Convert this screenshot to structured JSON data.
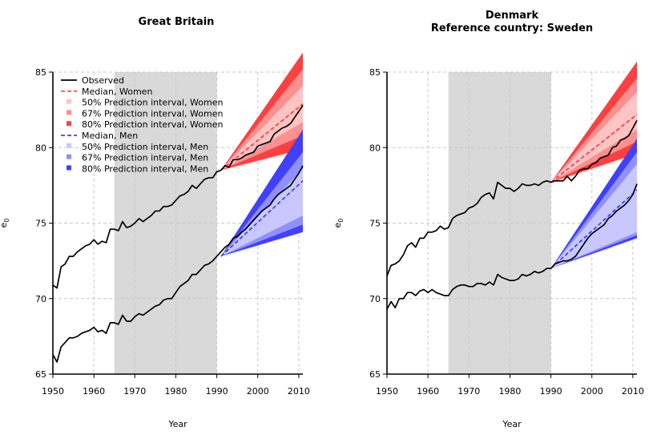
{
  "chart_data": [
    {
      "type": "line",
      "title": "Great Britain",
      "subtitle": "",
      "xlabel": "Year",
      "ylabel": "e0",
      "xlim": [
        1950,
        2011
      ],
      "ylim": [
        65,
        85
      ],
      "x_ticks": [
        1950,
        1960,
        1970,
        1980,
        1990,
        2000,
        2010
      ],
      "y_ticks": [
        65,
        70,
        75,
        80,
        85
      ],
      "shaded_period": [
        1965,
        1990
      ],
      "grid": true,
      "legend": {
        "placement": "top-left",
        "entries": [
          {
            "label": "Observed",
            "style": "line",
            "color": "#000000"
          },
          {
            "label": "Median, Women",
            "style": "dash",
            "color": "#ff2020"
          },
          {
            "label": "50% Prediction interval, Women",
            "style": "box",
            "color": "#ffc4c4"
          },
          {
            "label": "67% Prediction interval, Women",
            "style": "box",
            "color": "#ff9090"
          },
          {
            "label": "80% Prediction interval, Women",
            "style": "box",
            "color": "#ff4040"
          },
          {
            "label": "Median, Men",
            "style": "dash",
            "color": "#2020ff"
          },
          {
            "label": "50% Prediction interval, Men",
            "style": "box",
            "color": "#c8c8ff"
          },
          {
            "label": "67% Prediction interval, Men",
            "style": "box",
            "color": "#9090ff"
          },
          {
            "label": "80% Prediction interval, Men",
            "style": "box",
            "color": "#4040ff"
          }
        ]
      },
      "series": [
        {
          "name": "Observed, Women",
          "color": "#000000",
          "x": [
            1950,
            1951,
            1952,
            1953,
            1954,
            1955,
            1956,
            1957,
            1958,
            1959,
            1960,
            1961,
            1962,
            1963,
            1964,
            1965,
            1966,
            1967,
            1968,
            1969,
            1970,
            1971,
            1972,
            1973,
            1974,
            1975,
            1976,
            1977,
            1978,
            1979,
            1980,
            1981,
            1982,
            1983,
            1984,
            1985,
            1986,
            1987,
            1988,
            1989,
            1990,
            1991,
            1992,
            1993,
            1994,
            1995,
            1996,
            1997,
            1998,
            1999,
            2000,
            2001,
            2002,
            2003,
            2004,
            2005,
            2006,
            2007,
            2008,
            2009,
            2010,
            2011
          ],
          "values": [
            70.9,
            70.7,
            72.1,
            72.3,
            72.8,
            72.8,
            73.1,
            73.3,
            73.5,
            73.6,
            73.9,
            73.6,
            73.8,
            73.7,
            74.6,
            74.6,
            74.5,
            75.1,
            74.7,
            74.8,
            75.0,
            75.3,
            75.1,
            75.3,
            75.5,
            75.8,
            75.8,
            76.1,
            76.1,
            76.2,
            76.5,
            76.8,
            76.9,
            77.1,
            77.5,
            77.3,
            77.6,
            77.9,
            78.0,
            78.0,
            78.4,
            78.5,
            78.8,
            78.7,
            79.2,
            79.2,
            79.3,
            79.5,
            79.6,
            79.7,
            80.1,
            80.2,
            80.3,
            80.4,
            80.9,
            81.1,
            81.3,
            81.4,
            81.6,
            82.0,
            82.4,
            82.8
          ]
        },
        {
          "name": "Observed, Men",
          "color": "#000000",
          "x": [
            1950,
            1951,
            1952,
            1953,
            1954,
            1955,
            1956,
            1957,
            1958,
            1959,
            1960,
            1961,
            1962,
            1963,
            1964,
            1965,
            1966,
            1967,
            1968,
            1969,
            1970,
            1971,
            1972,
            1973,
            1974,
            1975,
            1976,
            1977,
            1978,
            1979,
            1980,
            1981,
            1982,
            1983,
            1984,
            1985,
            1986,
            1987,
            1988,
            1989,
            1990,
            1991,
            1992,
            1993,
            1994,
            1995,
            1996,
            1997,
            1998,
            1999,
            2000,
            2001,
            2002,
            2003,
            2004,
            2005,
            2006,
            2007,
            2008,
            2009,
            2010,
            2011
          ],
          "values": [
            66.3,
            65.8,
            66.8,
            67.1,
            67.4,
            67.4,
            67.5,
            67.7,
            67.8,
            67.9,
            68.1,
            67.8,
            67.9,
            67.7,
            68.4,
            68.4,
            68.3,
            68.9,
            68.5,
            68.5,
            68.8,
            69.0,
            68.9,
            69.1,
            69.3,
            69.5,
            69.6,
            69.9,
            70.0,
            70.0,
            70.4,
            70.8,
            71.0,
            71.2,
            71.6,
            71.6,
            71.9,
            72.2,
            72.3,
            72.5,
            72.8,
            73.1,
            73.4,
            73.6,
            74.0,
            74.1,
            74.4,
            74.6,
            74.9,
            75.2,
            75.5,
            75.8,
            76.0,
            76.2,
            76.6,
            76.9,
            77.1,
            77.3,
            77.5,
            77.9,
            78.3,
            78.8
          ]
        }
      ],
      "projections": [
        {
          "name": "Women",
          "start": [
            1991,
            78.5
          ],
          "end_year": 2011,
          "median_end": 82.9,
          "pi50_end": [
            81.7,
            84.1
          ],
          "pi67_end": [
            80.8,
            85.2
          ],
          "pi80_end": [
            79.9,
            86.3
          ],
          "colors": {
            "median": "#ff2020",
            "pi50": "#ffc4c4",
            "pi67": "#ff9090",
            "pi80": "#ff4040"
          }
        },
        {
          "name": "Men",
          "start": [
            1991,
            72.8
          ],
          "end_year": 2011,
          "median_end": 77.8,
          "pi50_end": [
            75.5,
            78.6
          ],
          "pi67_end": [
            74.9,
            79.7
          ],
          "pi80_end": [
            74.4,
            81.2
          ],
          "colors": {
            "median": "#2020ff",
            "pi50": "#c8c8ff",
            "pi67": "#9090ff",
            "pi80": "#4040ff"
          }
        }
      ]
    },
    {
      "type": "line",
      "title": "Denmark",
      "subtitle": "Reference country: Sweden",
      "xlabel": "Year",
      "ylabel": "e0",
      "xlim": [
        1950,
        2011
      ],
      "ylim": [
        65,
        85
      ],
      "x_ticks": [
        1950,
        1960,
        1970,
        1980,
        1990,
        2000,
        2010
      ],
      "y_ticks": [
        65,
        70,
        75,
        80,
        85
      ],
      "shaded_period": [
        1965,
        1990
      ],
      "grid": true,
      "series": [
        {
          "name": "Observed, Women",
          "color": "#000000",
          "x": [
            1950,
            1951,
            1952,
            1953,
            1954,
            1955,
            1956,
            1957,
            1958,
            1959,
            1960,
            1961,
            1962,
            1963,
            1964,
            1965,
            1966,
            1967,
            1968,
            1969,
            1970,
            1971,
            1972,
            1973,
            1974,
            1975,
            1976,
            1977,
            1978,
            1979,
            1980,
            1981,
            1982,
            1983,
            1984,
            1985,
            1986,
            1987,
            1988,
            1989,
            1990,
            1991,
            1992,
            1993,
            1994,
            1995,
            1996,
            1997,
            1998,
            1999,
            2000,
            2001,
            2002,
            2003,
            2004,
            2005,
            2006,
            2007,
            2008,
            2009,
            2010,
            2011
          ],
          "values": [
            71.5,
            72.2,
            72.3,
            72.5,
            72.9,
            73.5,
            73.7,
            73.4,
            74.0,
            74.0,
            74.4,
            74.4,
            74.5,
            74.8,
            74.6,
            74.7,
            75.3,
            75.5,
            75.6,
            75.7,
            76.0,
            76.1,
            76.3,
            76.7,
            76.9,
            77.0,
            76.6,
            77.7,
            77.5,
            77.3,
            77.3,
            77.1,
            77.3,
            77.6,
            77.5,
            77.5,
            77.6,
            77.5,
            77.7,
            77.8,
            77.7,
            77.8,
            77.8,
            77.8,
            78.1,
            77.8,
            78.1,
            78.5,
            78.6,
            78.6,
            78.9,
            79.0,
            79.3,
            79.4,
            79.5,
            80.0,
            80.1,
            80.5,
            80.6,
            80.8,
            81.3,
            81.8
          ]
        },
        {
          "name": "Observed, Men",
          "color": "#000000",
          "x": [
            1950,
            1951,
            1952,
            1953,
            1954,
            1955,
            1956,
            1957,
            1958,
            1959,
            1960,
            1961,
            1962,
            1963,
            1964,
            1965,
            1966,
            1967,
            1968,
            1969,
            1970,
            1971,
            1972,
            1973,
            1974,
            1975,
            1976,
            1977,
            1978,
            1979,
            1980,
            1981,
            1982,
            1983,
            1984,
            1985,
            1986,
            1987,
            1988,
            1989,
            1990,
            1991,
            1992,
            1993,
            1994,
            1995,
            1996,
            1997,
            1998,
            1999,
            2000,
            2001,
            2002,
            2003,
            2004,
            2005,
            2006,
            2007,
            2008,
            2009,
            2010,
            2011
          ],
          "values": [
            69.3,
            69.8,
            69.4,
            70.0,
            70.0,
            70.4,
            70.4,
            70.2,
            70.5,
            70.6,
            70.4,
            70.6,
            70.4,
            70.3,
            70.2,
            70.2,
            70.6,
            70.8,
            70.9,
            70.9,
            70.8,
            70.8,
            71.0,
            71.0,
            70.9,
            71.1,
            70.9,
            71.6,
            71.4,
            71.3,
            71.2,
            71.2,
            71.3,
            71.6,
            71.5,
            71.6,
            71.8,
            71.7,
            71.8,
            72.0,
            72.0,
            72.3,
            72.4,
            72.5,
            72.5,
            72.6,
            72.8,
            73.2,
            73.6,
            74.0,
            74.3,
            74.5,
            74.7,
            74.9,
            75.3,
            75.5,
            75.8,
            76.0,
            76.2,
            76.5,
            76.9,
            77.6
          ]
        }
      ],
      "projections": [
        {
          "name": "Women",
          "start": [
            1990,
            77.7
          ],
          "end_year": 2011,
          "median_end": 82.2,
          "pi50_end": [
            81.2,
            83.7
          ],
          "pi67_end": [
            80.4,
            84.6
          ],
          "pi80_end": [
            79.6,
            85.7
          ],
          "colors": {
            "median": "#ff2020",
            "pi50": "#ffc4c4",
            "pi67": "#ff9090",
            "pi80": "#ff4040"
          }
        },
        {
          "name": "Men",
          "start": [
            1990,
            72.0
          ],
          "end_year": 2011,
          "median_end": 77.2,
          "pi50_end": [
            74.4,
            78.9
          ],
          "pi67_end": [
            74.2,
            79.7
          ],
          "pi80_end": [
            74.0,
            80.6
          ],
          "colors": {
            "median": "#2020ff",
            "pi50": "#c8c8ff",
            "pi67": "#9090ff",
            "pi80": "#4040ff"
          }
        }
      ]
    }
  ]
}
